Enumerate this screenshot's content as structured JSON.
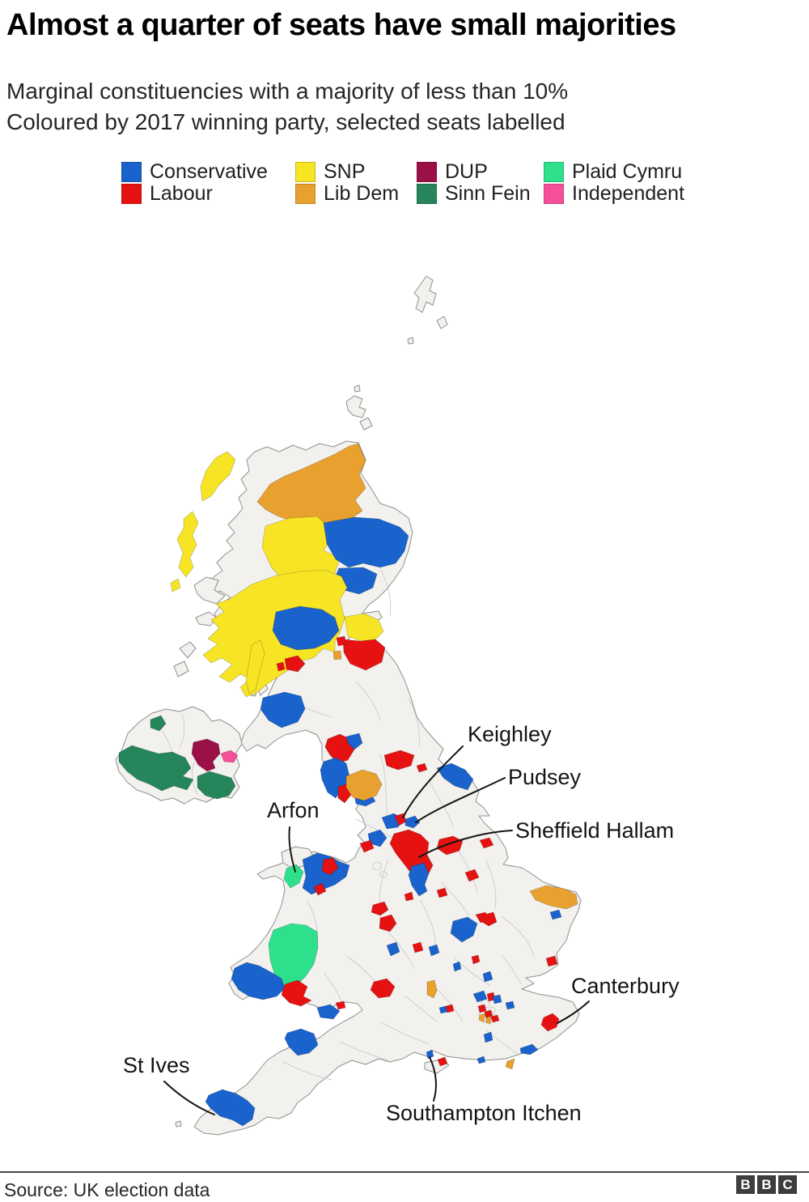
{
  "header": {
    "title": "Almost a quarter of seats have small majorities",
    "subtitle_line1": "Marginal constituencies with a majority of less than 10%",
    "subtitle_line2": "Coloured by 2017 winning party, selected seats labelled"
  },
  "legend": {
    "columns": [
      {
        "items": [
          {
            "label": "Conservative",
            "color": "#1a62cc"
          },
          {
            "label": "Labour",
            "color": "#e61212"
          }
        ]
      },
      {
        "items": [
          {
            "label": "SNP",
            "color": "#f7e424"
          },
          {
            "label": "Lib Dem",
            "color": "#e8a12f"
          }
        ]
      },
      {
        "items": [
          {
            "label": "DUP",
            "color": "#9c1048"
          },
          {
            "label": "Sinn Fein",
            "color": "#27855c"
          }
        ]
      },
      {
        "items": [
          {
            "label": "Plaid Cymru",
            "color": "#2ee08c"
          },
          {
            "label": "Independent",
            "color": "#f64f9a"
          }
        ]
      }
    ]
  },
  "map": {
    "labels": [
      {
        "id": "keighley",
        "text": "Keighley"
      },
      {
        "id": "pudsey",
        "text": "Pudsey"
      },
      {
        "id": "sheffield-hallam",
        "text": "Sheffield Hallam"
      },
      {
        "id": "arfon",
        "text": "Arfon"
      },
      {
        "id": "canterbury",
        "text": "Canterbury"
      },
      {
        "id": "st-ives",
        "text": "St Ives"
      },
      {
        "id": "southampton-itchen",
        "text": "Southampton Itchen"
      }
    ]
  },
  "footer": {
    "source": "Source: UK election data",
    "logo_letters": [
      "B",
      "B",
      "C"
    ]
  }
}
